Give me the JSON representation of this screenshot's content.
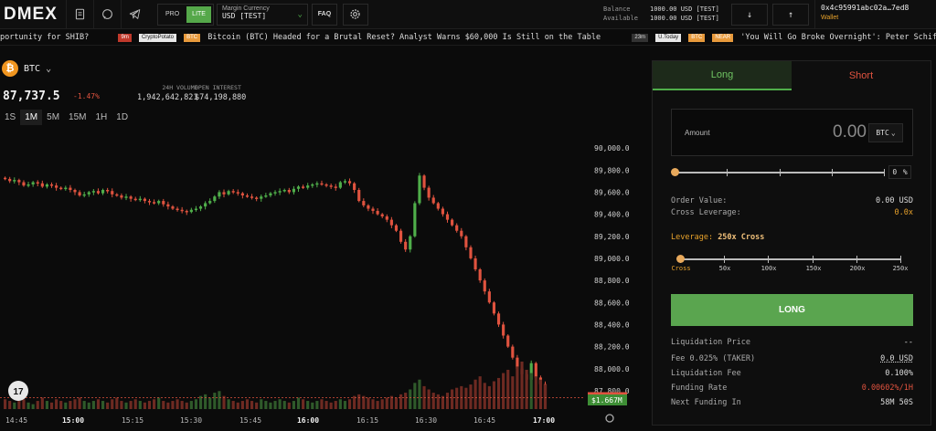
{
  "topbar": {
    "logo": "DMEX",
    "mode_pro": "PRO",
    "mode_lite": "LITE",
    "margin_label": "Margin Currency",
    "margin_value": "USD [TEST]",
    "faq": "FAQ",
    "balance_label": "Balance",
    "balance_value": "1000.00 USD [TEST]",
    "available_label": "Available",
    "available_value": "1000.00 USD [TEST]",
    "wallet_address": "0x4c95991abc02a…7ed8",
    "wallet_label": "Wallet"
  },
  "ticker": {
    "item1_text": "portunity for SHIB?",
    "item2_age": "9m",
    "item2_source": "CryptoPotato",
    "item2_tag": "BTC",
    "item2_text": "Bitcoin (BTC) Headed for a Brutal Reset? Analyst Warns $60,000 Is Still on the Table",
    "item3_age": "23m",
    "item3_source": "U.Today",
    "item3_tag1": "BTC",
    "item3_tag2": "NEAR",
    "item3_text": "'You Will Go Broke Overnight': Peter Schiff Issue"
  },
  "market": {
    "symbol": "BTC",
    "price": "87,737.5",
    "change": "-1.47%",
    "volume_label": "24H VOLUME",
    "volume_value": "1,942,642,821",
    "oi_label": "OPEN INTEREST",
    "oi_value": "$74,198,880",
    "intervals": [
      "1S",
      "1M",
      "5M",
      "15M",
      "1H",
      "1D"
    ],
    "active_interval": "1M"
  },
  "chart_data": {
    "type": "candlestick",
    "y_ticks": [
      "90,000.0",
      "89,800.0",
      "89,600.0",
      "89,400.0",
      "89,200.0",
      "89,000.0",
      "88,800.0",
      "88,600.0",
      "88,400.0",
      "88,200.0",
      "88,000.0",
      "87,800.0"
    ],
    "ylim": [
      87700,
      90100
    ],
    "x_ticks": [
      "14:45",
      "15:00",
      "15:15",
      "15:30",
      "15:45",
      "16:00",
      "16:15",
      "16:30",
      "16:45",
      "17:00"
    ],
    "bold_x_ticks": [
      "15:00",
      "16:00",
      "17:00"
    ],
    "last_price_label": "87,737.5",
    "last_volume_label": "$1.667M",
    "close": [
      89720,
      89700,
      89710,
      89690,
      89660,
      89670,
      89690,
      89680,
      89650,
      89670,
      89660,
      89640,
      89630,
      89640,
      89620,
      89600,
      89570,
      89580,
      89600,
      89610,
      89590,
      89620,
      89610,
      89580,
      89570,
      89550,
      89560,
      89540,
      89530,
      89540,
      89520,
      89510,
      89500,
      89520,
      89490,
      89470,
      89450,
      89440,
      89430,
      89420,
      89440,
      89450,
      89470,
      89500,
      89520,
      89560,
      89600,
      89580,
      89610,
      89600,
      89590,
      89570,
      89560,
      89550,
      89540,
      89560,
      89570,
      89590,
      89600,
      89610,
      89620,
      89600,
      89630,
      89650,
      89640,
      89660,
      89670,
      89680,
      89670,
      89660,
      89650,
      89640,
      89690,
      89700,
      89680,
      89620,
      89520,
      89480,
      89450,
      89430,
      89400,
      89380,
      89350,
      89300,
      89250,
      89150,
      89080,
      89200,
      89500,
      89750,
      89640,
      89550,
      89500,
      89450,
      89400,
      89350,
      89300,
      89250,
      89200,
      89100,
      89000,
      88900,
      88800,
      88700,
      88600,
      88500,
      88400,
      88300,
      88200,
      88100,
      88000,
      87950,
      87900,
      88050,
      87920,
      87860,
      87737.5
    ],
    "volume": [
      0.6,
      0.5,
      0.4,
      0.5,
      0.6,
      0.4,
      0.3,
      0.5,
      0.7,
      0.5,
      0.4,
      0.6,
      0.5,
      0.4,
      0.5,
      0.6,
      0.7,
      0.5,
      0.4,
      0.5,
      0.6,
      0.5,
      0.4,
      0.6,
      0.7,
      0.5,
      0.4,
      0.5,
      0.6,
      0.5,
      0.4,
      0.5,
      0.6,
      0.7,
      0.5,
      0.4,
      0.5,
      0.6,
      0.5,
      0.4,
      0.5,
      0.6,
      0.8,
      0.9,
      0.7,
      1.0,
      1.1,
      0.8,
      0.6,
      0.5,
      0.4,
      0.5,
      0.6,
      0.5,
      0.4,
      0.6,
      0.5,
      0.4,
      0.5,
      0.6,
      0.5,
      0.4,
      0.5,
      0.7,
      0.6,
      0.5,
      0.4,
      0.5,
      0.6,
      0.5,
      0.4,
      0.5,
      0.6,
      0.5,
      0.6,
      0.8,
      0.9,
      0.8,
      0.7,
      0.6,
      0.5,
      0.6,
      0.7,
      0.8,
      0.7,
      0.9,
      1.0,
      1.2,
      1.6,
      1.8,
      1.4,
      1.2,
      1.0,
      0.9,
      0.8,
      1.0,
      1.2,
      1.3,
      1.4,
      1.3,
      1.5,
      1.8,
      2.0,
      1.6,
      1.4,
      1.7,
      1.9,
      2.2,
      2.4,
      2.0,
      2.6,
      2.9,
      2.4,
      2.2,
      2.0,
      1.8,
      1.5
    ]
  },
  "order_panel": {
    "tab_long": "Long",
    "tab_short": "Short",
    "amount_label": "Amount",
    "amount_value": "0.00",
    "amount_unit": "BTC",
    "percent_value": "0",
    "percent_unit": "%",
    "order_value_label": "Order Value:",
    "order_value": "0.00 USD",
    "cross_leverage_label": "Cross Leverage:",
    "cross_leverage": "0.0x",
    "leverage_label": "Leverage:",
    "leverage_value": "250x Cross",
    "leverage_marks": [
      "Cross",
      "50x",
      "100x",
      "150x",
      "200x",
      "250x"
    ],
    "submit_label": "LONG",
    "liq_price_label": "Liquidation Price",
    "liq_price": "--",
    "fee_label": "Fee 0.025% (TAKER)",
    "fee_value": "0.0 USD",
    "liq_fee_label": "Liquidation Fee",
    "liq_fee": "0.100%",
    "funding_rate_label": "Funding Rate",
    "funding_rate": "0.00602%/1H",
    "next_funding_label": "Next Funding In",
    "next_funding": "58M 50S"
  },
  "colors": {
    "green": "#4fae4a",
    "red": "#e0533f",
    "orange": "#e8a22b"
  }
}
